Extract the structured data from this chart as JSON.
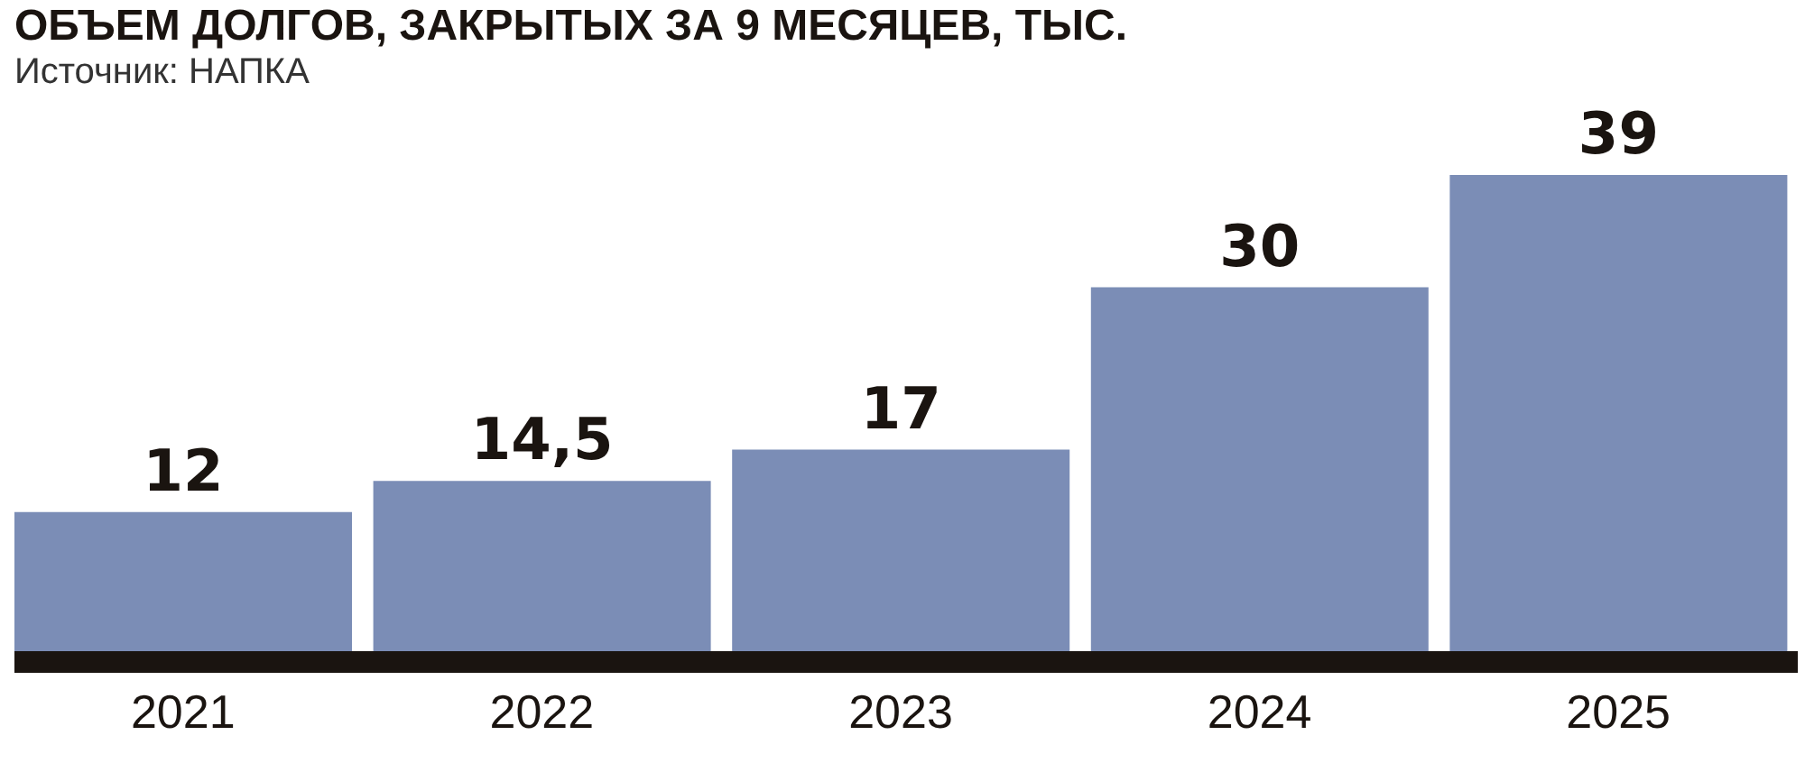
{
  "chart_data": {
    "type": "bar",
    "title": "ОБЪЕМ ДОЛГОВ, ЗАКРЫТЫХ ЗА 9 МЕСЯЦЕВ, ТЫС.",
    "annotations": [
      "Источник: НАПКА"
    ],
    "categories": [
      "2021",
      "2022",
      "2023",
      "2024",
      "2025"
    ],
    "values": [
      12,
      14.5,
      17,
      30,
      39
    ],
    "value_labels": [
      "12",
      "14,5",
      "17",
      "30",
      "39"
    ],
    "color": "#7b8db6",
    "grid": false,
    "legend": false
  }
}
